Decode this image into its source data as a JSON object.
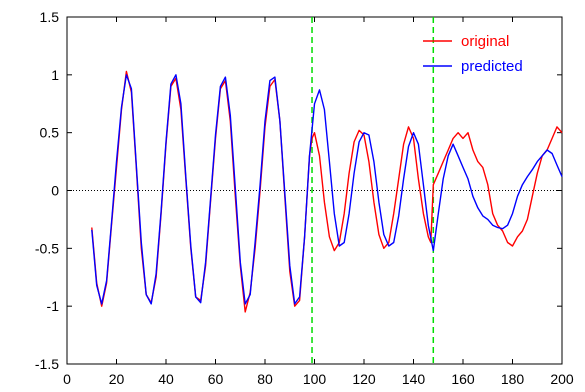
{
  "chart_data": {
    "type": "line",
    "title": "",
    "xlabel": "",
    "ylabel": "",
    "xlim": [
      0,
      200
    ],
    "ylim": [
      -1.5,
      1.5
    ],
    "xticks": [
      0,
      20,
      40,
      60,
      80,
      100,
      120,
      140,
      160,
      180,
      200
    ],
    "yticks": [
      -1.5,
      -1,
      -0.5,
      0,
      0.5,
      1,
      1.5
    ],
    "xtick_labels": [
      "0",
      "20",
      "40",
      "60",
      "80",
      "100",
      "120",
      "140",
      "160",
      "180",
      "200"
    ],
    "ytick_labels": [
      "-1.5",
      "-1",
      "-0.5",
      "0",
      "0.5",
      "1",
      "1.5"
    ],
    "grid": false,
    "legend_position": "top-right",
    "zero_line": {
      "y": 0,
      "style": "dotted",
      "color": "#000000"
    },
    "vertical_lines": [
      {
        "x": 99,
        "style": "dashed",
        "color": "#00dd00"
      },
      {
        "x": 148,
        "style": "dashed",
        "color": "#00dd00"
      }
    ],
    "series": [
      {
        "name": "original",
        "color": "#ff0000",
        "x": [
          10,
          12,
          14,
          16,
          18,
          20,
          22,
          24,
          26,
          28,
          30,
          32,
          34,
          36,
          38,
          40,
          42,
          44,
          46,
          48,
          50,
          52,
          54,
          56,
          58,
          60,
          62,
          64,
          66,
          68,
          70,
          72,
          74,
          76,
          78,
          80,
          82,
          84,
          86,
          88,
          90,
          92,
          94,
          96,
          98,
          99,
          100,
          102,
          104,
          106,
          108,
          110,
          112,
          114,
          116,
          118,
          120,
          122,
          124,
          126,
          128,
          130,
          132,
          134,
          136,
          138,
          140,
          142,
          144,
          146,
          147,
          148,
          150,
          152,
          154,
          156,
          158,
          160,
          162,
          164,
          166,
          168,
          170,
          172,
          174,
          176,
          178,
          180,
          182,
          184,
          186,
          188,
          190,
          192,
          194,
          196,
          198,
          200
        ],
        "y": [
          -0.32,
          -0.8,
          -1.0,
          -0.8,
          -0.3,
          0.2,
          0.7,
          1.03,
          0.85,
          0.2,
          -0.5,
          -0.9,
          -0.97,
          -0.75,
          -0.2,
          0.4,
          0.9,
          0.97,
          0.7,
          0.1,
          -0.5,
          -0.92,
          -0.95,
          -0.65,
          -0.1,
          0.45,
          0.88,
          0.95,
          0.6,
          -0.05,
          -0.65,
          -1.05,
          -0.88,
          -0.5,
          0.0,
          0.55,
          0.9,
          0.96,
          0.6,
          -0.05,
          -0.7,
          -1.0,
          -0.95,
          -0.4,
          0.3,
          0.45,
          0.5,
          0.3,
          -0.1,
          -0.4,
          -0.52,
          -0.45,
          -0.2,
          0.15,
          0.42,
          0.52,
          0.48,
          0.25,
          -0.1,
          -0.38,
          -0.5,
          -0.45,
          -0.2,
          0.1,
          0.4,
          0.55,
          0.45,
          0.1,
          -0.2,
          -0.4,
          -0.45,
          0.05,
          0.15,
          0.25,
          0.35,
          0.45,
          0.5,
          0.45,
          0.5,
          0.35,
          0.25,
          0.2,
          0.05,
          -0.2,
          -0.3,
          -0.35,
          -0.45,
          -0.48,
          -0.4,
          -0.35,
          -0.25,
          -0.05,
          0.15,
          0.3,
          0.35,
          0.45,
          0.55,
          0.5
        ]
      },
      {
        "name": "predicted",
        "color": "#0000ff",
        "x": [
          10,
          12,
          14,
          16,
          18,
          20,
          22,
          24,
          26,
          28,
          30,
          32,
          34,
          36,
          38,
          40,
          42,
          44,
          46,
          48,
          50,
          52,
          54,
          56,
          58,
          60,
          62,
          64,
          66,
          68,
          70,
          72,
          74,
          76,
          78,
          80,
          82,
          84,
          86,
          88,
          90,
          92,
          94,
          96,
          98,
          100,
          102,
          104,
          106,
          108,
          110,
          112,
          114,
          116,
          118,
          120,
          122,
          124,
          126,
          128,
          130,
          132,
          134,
          136,
          138,
          140,
          142,
          144,
          146,
          148,
          150,
          152,
          154,
          156,
          158,
          160,
          162,
          164,
          166,
          168,
          170,
          172,
          174,
          176,
          178,
          180,
          182,
          184,
          186,
          188,
          190,
          192,
          194,
          196,
          198,
          200
        ],
        "y": [
          -0.34,
          -0.82,
          -0.98,
          -0.78,
          -0.28,
          0.25,
          0.72,
          1.0,
          0.88,
          0.22,
          -0.45,
          -0.9,
          -0.98,
          -0.72,
          -0.18,
          0.42,
          0.92,
          1.0,
          0.75,
          0.12,
          -0.48,
          -0.92,
          -0.97,
          -0.62,
          -0.08,
          0.48,
          0.9,
          0.98,
          0.65,
          0.02,
          -0.62,
          -0.98,
          -0.9,
          -0.45,
          0.05,
          0.6,
          0.95,
          0.98,
          0.6,
          -0.02,
          -0.65,
          -0.98,
          -0.92,
          -0.4,
          0.3,
          0.75,
          0.87,
          0.7,
          0.25,
          -0.2,
          -0.48,
          -0.45,
          -0.2,
          0.15,
          0.42,
          0.5,
          0.48,
          0.25,
          -0.1,
          -0.38,
          -0.48,
          -0.45,
          -0.22,
          0.1,
          0.38,
          0.5,
          0.4,
          0.05,
          -0.3,
          -0.52,
          -0.2,
          0.1,
          0.3,
          0.4,
          0.3,
          0.2,
          0.1,
          -0.05,
          -0.15,
          -0.22,
          -0.25,
          -0.3,
          -0.32,
          -0.33,
          -0.3,
          -0.2,
          -0.05,
          0.05,
          0.12,
          0.18,
          0.25,
          0.3,
          0.35,
          0.32,
          0.22,
          0.12
        ]
      }
    ]
  }
}
